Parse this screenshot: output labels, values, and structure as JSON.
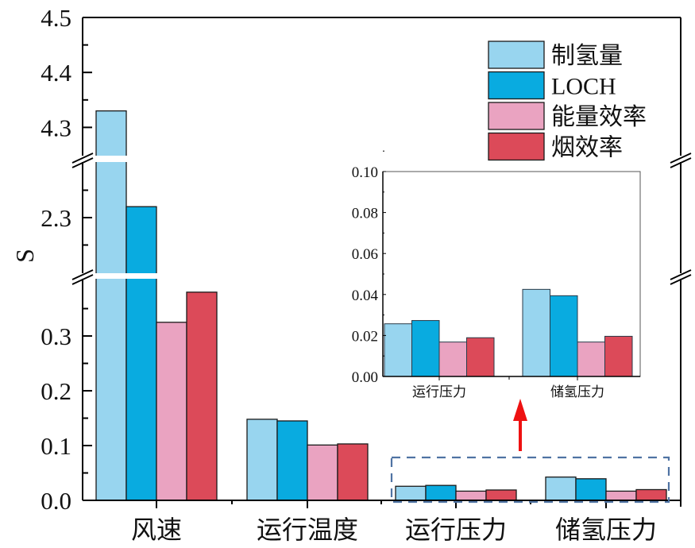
{
  "chart_data": {
    "type": "bar",
    "ylabel": "S",
    "xlabel": "",
    "categories": [
      "风速",
      "运行温度",
      "运行压力",
      "储氢压力"
    ],
    "series": [
      {
        "name": "制氢量",
        "color": "#98d5ef",
        "values": [
          4.33,
          0.148,
          0.0257,
          0.0425
        ]
      },
      {
        "name": "LOCH",
        "color": "#09abe0",
        "values": [
          2.32,
          0.145,
          0.0273,
          0.0394
        ]
      },
      {
        "name": "能量效率",
        "color": "#eaa3c1",
        "values": [
          0.325,
          0.101,
          0.0168,
          0.0168
        ]
      },
      {
        "name": "烟效率",
        "color": "#dc4a59",
        "values": [
          0.38,
          0.103,
          0.0189,
          0.0196
        ]
      }
    ],
    "y_axis_broken": true,
    "y_segments": [
      [
        0,
        0.403
      ],
      [
        2.2,
        2.4
      ],
      [
        4.25,
        4.5
      ]
    ],
    "yticks": [
      "0.0",
      "0.1",
      "0.2",
      "0.3",
      "2.3",
      "4.3",
      "4.4",
      "4.5"
    ],
    "legend": "top-right",
    "grid": false,
    "inset": {
      "categories": [
        "运行压力",
        "储氢压力"
      ],
      "ylim": [
        0,
        0.1
      ],
      "yticks": [
        "0.00",
        "0.02",
        "0.04",
        "0.06",
        "0.08",
        "0.10"
      ]
    }
  }
}
